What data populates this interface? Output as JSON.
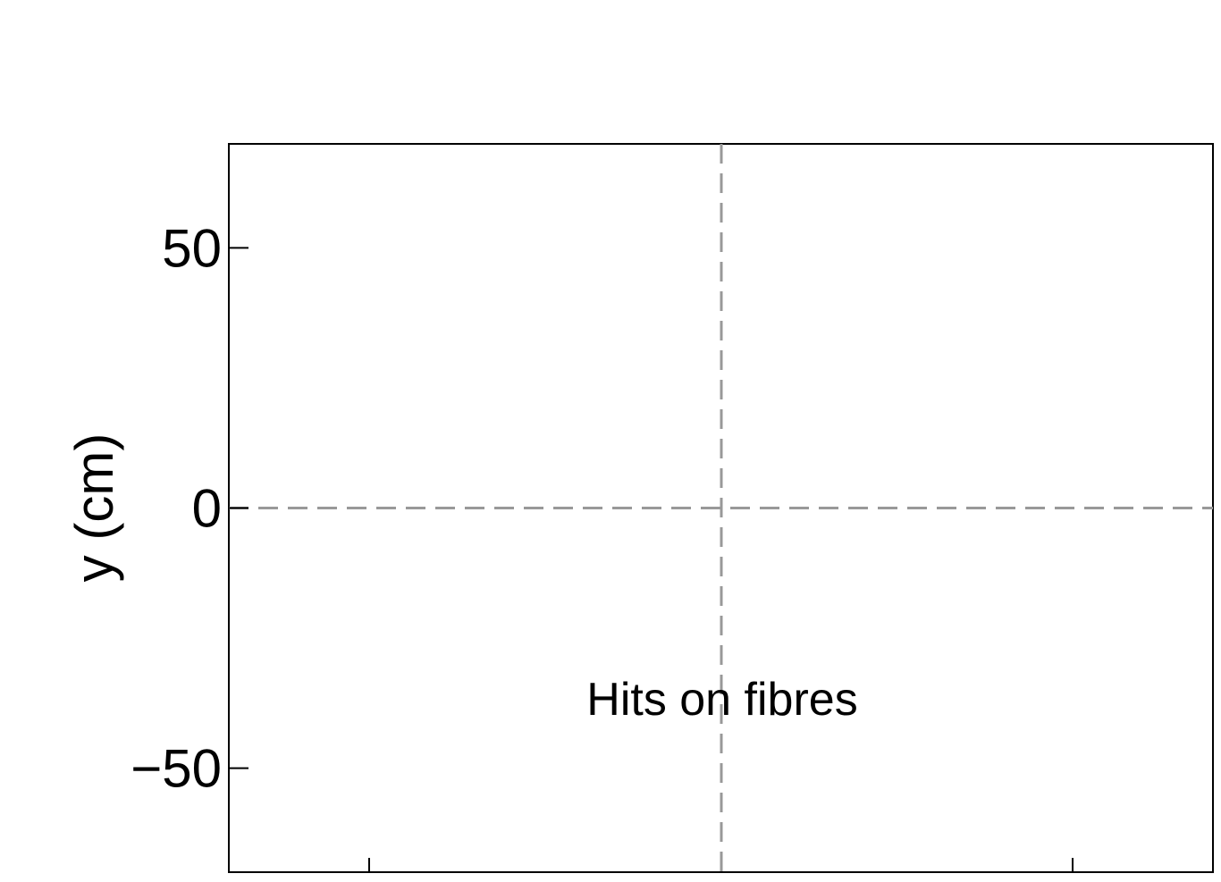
{
  "chart_data": {
    "type": "scatter",
    "title": "",
    "xlabel": "",
    "ylabel": "y (cm)",
    "ylim": [
      -70,
      70
    ],
    "yticks": [
      {
        "value": 50,
        "label": "50"
      },
      {
        "value": 0,
        "label": "0"
      },
      {
        "value": -50,
        "label": "−50"
      }
    ],
    "series": [],
    "reference_lines": [
      {
        "orientation": "horizontal",
        "value": 0,
        "style": "dashed",
        "color": "#999999"
      },
      {
        "orientation": "vertical",
        "position": "center",
        "style": "dashed",
        "color": "#999999"
      }
    ],
    "annotation": "Hits on fibres",
    "grid": false,
    "legend": "none"
  },
  "colors": {
    "frame": "#000000",
    "reference_line": "#999999",
    "background": "#ffffff"
  }
}
